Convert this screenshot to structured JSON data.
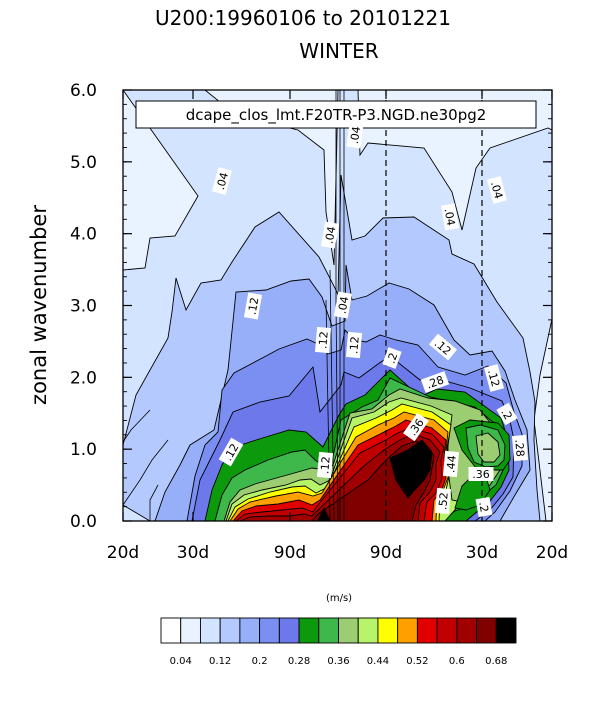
{
  "chart_data": {
    "type": "heatmap",
    "title": "U200:19960106 to 20101221",
    "subtitle": "WINTER",
    "legend_label": "dcape_clos_lmt.F20TR-P3.NGD.ne30pg2",
    "ylabel": "zonal wavenumber",
    "xlabel": "",
    "x_tick_labels": [
      "20d",
      "30d",
      "90d",
      "90d",
      "30d",
      "20d"
    ],
    "y_tick_labels": [
      "0.0",
      "1.0",
      "2.0",
      "3.0",
      "4.0",
      "5.0",
      "6.0"
    ],
    "ylim": [
      0,
      6
    ],
    "colorbar_units": "(m/s)",
    "colorbar_levels": [
      0.04,
      0.08,
      0.12,
      0.16,
      0.2,
      0.24,
      0.28,
      0.32,
      0.36,
      0.4,
      0.44,
      0.48,
      0.52,
      0.56,
      0.6,
      0.64,
      0.68
    ],
    "colorbar_tick_labels": [
      "0.04",
      "0.12",
      "0.2",
      "0.28",
      "0.36",
      "0.44",
      "0.52",
      "0.6",
      "0.68"
    ],
    "colorbar_colors": [
      "#ffffff",
      "#e9f3ff",
      "#d2e4ff",
      "#b4caff",
      "#97aef9",
      "#7b8ff2",
      "#6d79ea",
      "#0c9a0c",
      "#3eb84a",
      "#9ccd72",
      "#b8f46a",
      "#ffff00",
      "#ffa000",
      "#e00000",
      "#c00000",
      "#a00000",
      "#800000",
      "#000000"
    ],
    "contour_labels": [
      ".04",
      ".04",
      ".04",
      ".04",
      ".04",
      ".04",
      ".12",
      ".12",
      ".12",
      ".12",
      ".12",
      ".12",
      ".12",
      ".2",
      ".2",
      ".2",
      ".28",
      ".28",
      ".36",
      ".36",
      ".44",
      ".52"
    ],
    "dashed_reference_lines": [
      "90d",
      "30d"
    ]
  }
}
